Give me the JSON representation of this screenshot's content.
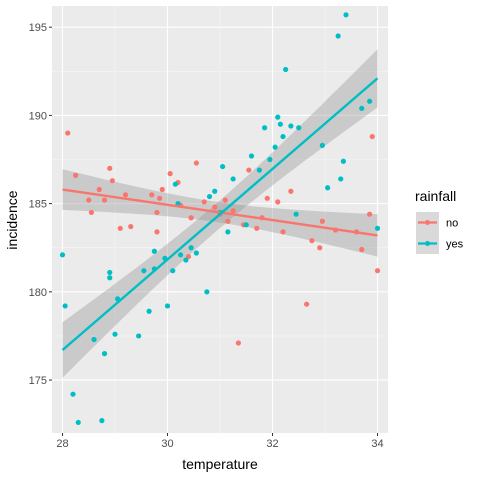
{
  "chart_data": {
    "type": "scatter",
    "title": "",
    "xlabel": "temperature",
    "ylabel": "incidence",
    "xlim": [
      27.8,
      34.2
    ],
    "ylim": [
      172.0,
      196.2
    ],
    "x_ticks": [
      28,
      30,
      32,
      34
    ],
    "y_ticks": [
      175,
      180,
      185,
      190,
      195
    ],
    "grid": true,
    "legend": {
      "title": "rainfall",
      "position": "right",
      "entries": [
        "no",
        "yes"
      ]
    },
    "series": [
      {
        "name": "no",
        "color": "#F8766D",
        "points": [
          [
            28.1,
            189.0
          ],
          [
            28.25,
            186.6
          ],
          [
            28.5,
            185.2
          ],
          [
            28.55,
            184.5
          ],
          [
            28.7,
            185.8
          ],
          [
            28.8,
            185.2
          ],
          [
            28.9,
            187.0
          ],
          [
            28.95,
            186.3
          ],
          [
            29.1,
            183.6
          ],
          [
            29.2,
            185.5
          ],
          [
            29.3,
            183.7
          ],
          [
            29.7,
            185.5
          ],
          [
            29.8,
            184.5
          ],
          [
            29.8,
            183.4
          ],
          [
            29.85,
            185.3
          ],
          [
            29.9,
            185.8
          ],
          [
            30.05,
            186.7
          ],
          [
            30.2,
            186.2
          ],
          [
            30.25,
            184.9
          ],
          [
            30.4,
            182.0
          ],
          [
            30.45,
            184.2
          ],
          [
            30.55,
            187.3
          ],
          [
            30.7,
            185.1
          ],
          [
            30.9,
            184.8
          ],
          [
            31.0,
            184.4
          ],
          [
            31.1,
            185.2
          ],
          [
            31.15,
            184.0
          ],
          [
            31.25,
            184.6
          ],
          [
            31.35,
            177.1
          ],
          [
            31.45,
            183.8
          ],
          [
            31.55,
            186.9
          ],
          [
            31.7,
            183.6
          ],
          [
            31.8,
            184.2
          ],
          [
            31.9,
            185.3
          ],
          [
            32.1,
            185.1
          ],
          [
            32.2,
            183.4
          ],
          [
            32.35,
            185.7
          ],
          [
            32.65,
            179.3
          ],
          [
            32.75,
            182.9
          ],
          [
            32.9,
            182.5
          ],
          [
            32.95,
            184.0
          ],
          [
            33.2,
            183.5
          ],
          [
            33.6,
            183.4
          ],
          [
            33.7,
            182.4
          ],
          [
            33.85,
            184.4
          ],
          [
            33.9,
            188.8
          ],
          [
            34.0,
            181.2
          ]
        ],
        "trend": {
          "x": [
            28.0,
            34.0
          ],
          "y": [
            185.8,
            183.2
          ]
        }
      },
      {
        "name": "yes",
        "color": "#00BFC4",
        "points": [
          [
            28.0,
            182.1
          ],
          [
            28.05,
            179.2
          ],
          [
            28.2,
            174.2
          ],
          [
            28.3,
            172.6
          ],
          [
            28.6,
            177.3
          ],
          [
            28.75,
            172.7
          ],
          [
            28.8,
            176.5
          ],
          [
            28.9,
            181.1
          ],
          [
            28.9,
            180.8
          ],
          [
            29.0,
            177.6
          ],
          [
            29.05,
            179.6
          ],
          [
            29.45,
            177.5
          ],
          [
            29.55,
            181.2
          ],
          [
            29.65,
            178.9
          ],
          [
            29.75,
            182.3
          ],
          [
            29.75,
            181.3
          ],
          [
            29.95,
            181.9
          ],
          [
            30.0,
            179.2
          ],
          [
            30.1,
            181.2
          ],
          [
            30.15,
            186.1
          ],
          [
            30.2,
            185.0
          ],
          [
            30.25,
            182.1
          ],
          [
            30.35,
            181.8
          ],
          [
            30.45,
            182.5
          ],
          [
            30.55,
            182.2
          ],
          [
            30.75,
            180.0
          ],
          [
            30.8,
            185.4
          ],
          [
            30.9,
            185.7
          ],
          [
            31.05,
            187.1
          ],
          [
            31.15,
            183.4
          ],
          [
            31.25,
            186.4
          ],
          [
            31.5,
            183.8
          ],
          [
            31.6,
            187.7
          ],
          [
            31.75,
            186.9
          ],
          [
            31.85,
            189.3
          ],
          [
            31.95,
            187.5
          ],
          [
            32.05,
            188.2
          ],
          [
            32.1,
            189.9
          ],
          [
            32.15,
            189.5
          ],
          [
            32.2,
            188.8
          ],
          [
            32.25,
            192.6
          ],
          [
            32.35,
            189.4
          ],
          [
            32.5,
            189.3
          ],
          [
            32.95,
            188.3
          ],
          [
            33.05,
            185.9
          ],
          [
            33.25,
            194.5
          ],
          [
            33.3,
            186.4
          ],
          [
            33.35,
            187.4
          ],
          [
            33.4,
            195.7
          ],
          [
            33.7,
            190.4
          ],
          [
            33.85,
            190.8
          ],
          [
            34.0,
            183.6
          ],
          [
            32.45,
            184.4
          ],
          [
            31.0,
            184.5
          ]
        ],
        "trend": {
          "x": [
            28.0,
            34.0
          ],
          "y": [
            176.7,
            192.1
          ]
        }
      }
    ]
  }
}
